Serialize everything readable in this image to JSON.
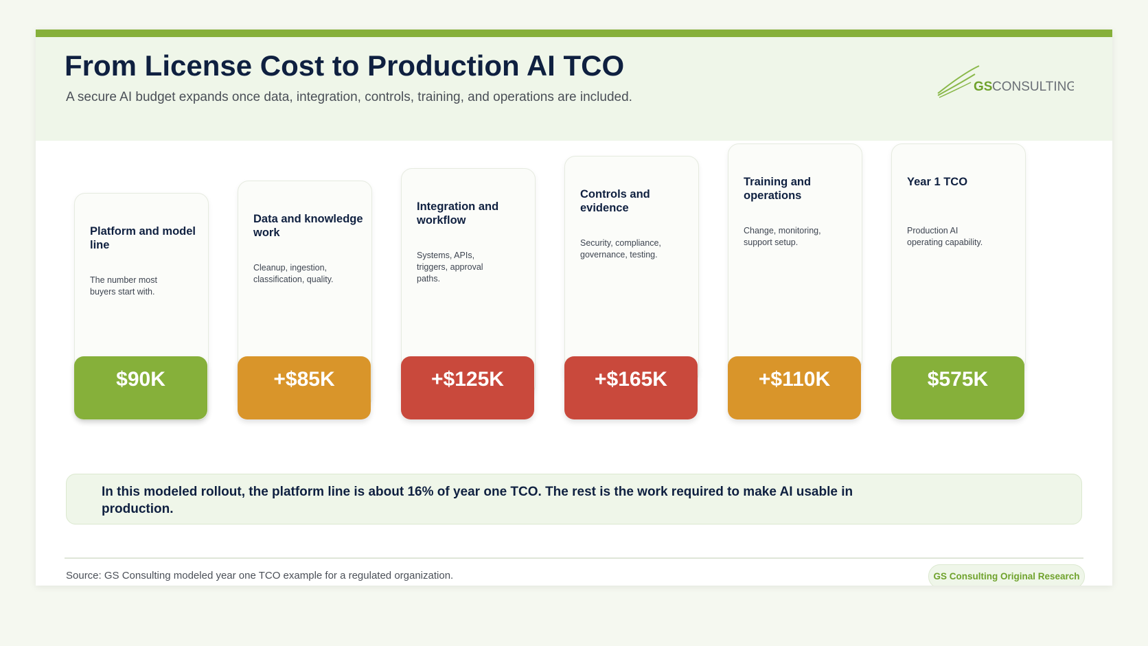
{
  "header": {
    "title": "From License Cost to Production AI TCO",
    "subtitle": "A secure AI budget expands once data, integration, controls, training, and operations are included.",
    "logo": {
      "mark": "GS",
      "word": "CONSULTING"
    }
  },
  "cards": [
    {
      "title": "Platform and model line",
      "description": "The number most buyers start with.",
      "amount": "$90K",
      "color": "#86b03a"
    },
    {
      "title": "Data and knowledge work",
      "description": "Cleanup, ingestion, classification, quality.",
      "amount": "+$85K",
      "color": "#d9952a"
    },
    {
      "title": "Integration and workflow",
      "description": "Systems, APIs, triggers, approval paths.",
      "amount": "+$125K",
      "color": "#c9493c"
    },
    {
      "title": "Controls and evidence",
      "description": "Security, compliance, governance, testing.",
      "amount": "+$165K",
      "color": "#c9493c"
    },
    {
      "title": "Training and operations",
      "description": "Change, monitoring, support setup.",
      "amount": "+$110K",
      "color": "#d9952a"
    },
    {
      "title": "Year 1 TCO",
      "description": "Production AI operating capability.",
      "amount": "$575K",
      "color": "#86b03a"
    }
  ],
  "callout": "In this modeled rollout, the platform line is about 16% of year one TCO. The rest is the work required to make AI usable in production.",
  "footer": {
    "source": "Source: GS Consulting modeled year one TCO example for a regulated organization.",
    "badge": "GS Consulting Original Research"
  }
}
